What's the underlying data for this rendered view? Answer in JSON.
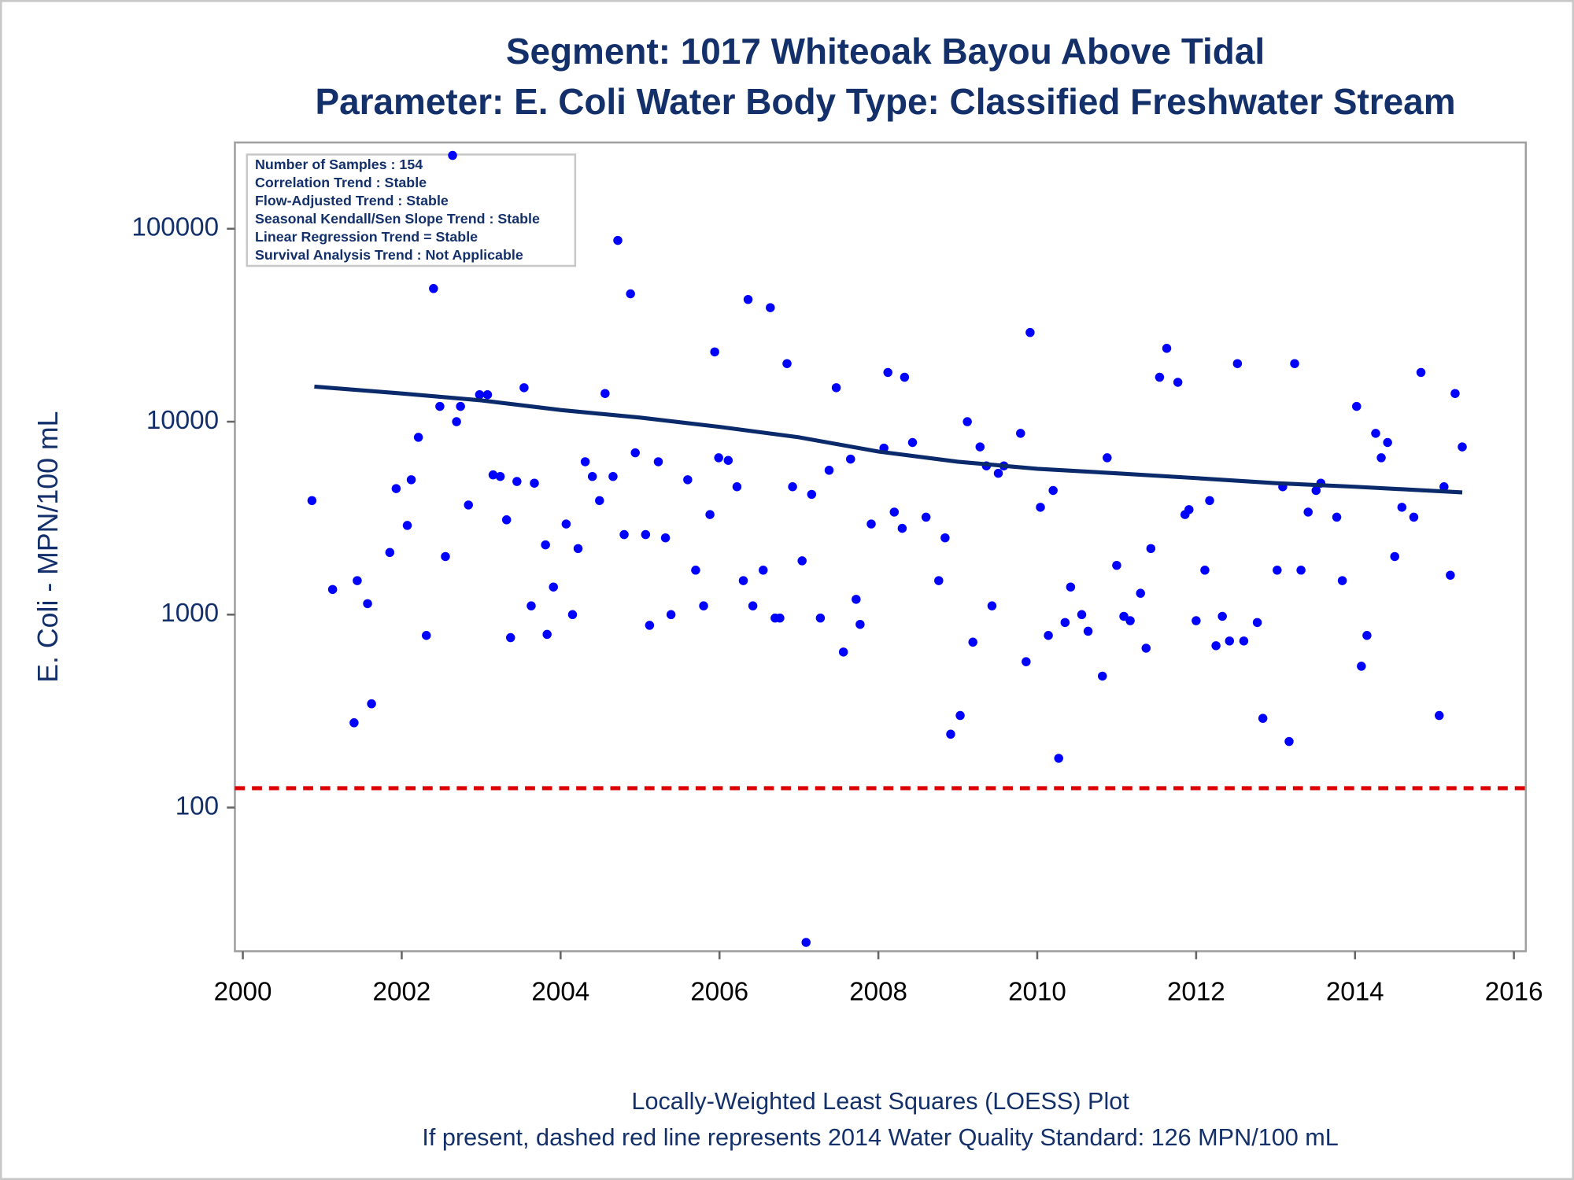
{
  "chart_data": {
    "type": "scatter",
    "title": "Segment: 1017  Whiteoak Bayou Above Tidal",
    "subtitle": "Parameter: E. Coli   Water Body Type: Classified Freshwater Stream",
    "y_label": "E. Coli - MPN/100 mL",
    "footnotes": [
      "Locally-Weighted Least Squares (LOESS) Plot",
      "If present, dashed red line represents 2014 Water Quality Standard: 126 MPN/100 mL"
    ],
    "stats_box": [
      "Number of Samples : 154",
      "Correlation Trend : Stable",
      "Flow-Adjusted Trend : Stable",
      "Seasonal Kendall/Sen Slope Trend : Stable",
      "Linear Regression Trend = Stable",
      "Survival Analysis Trend : Not Applicable"
    ],
    "y_scale": "log",
    "xlim": [
      1999.9,
      2016.15
    ],
    "xticks": [
      2000,
      2002,
      2004,
      2006,
      2008,
      2010,
      2012,
      2014,
      2016
    ],
    "ylim": [
      18,
      280000
    ],
    "yticks": [
      100,
      1000,
      10000,
      100000
    ],
    "points": {
      "color": "#0000ff",
      "x": [
        2000.87,
        2001.13,
        2001.4,
        2001.44,
        2001.57,
        2001.62,
        2001.85,
        2001.93,
        2002.07,
        2002.12,
        2002.21,
        2002.31,
        2002.4,
        2002.48,
        2002.55,
        2002.64,
        2002.69,
        2002.74,
        2002.84,
        2002.98,
        2003.08,
        2003.15,
        2003.24,
        2003.32,
        2003.37,
        2003.45,
        2003.54,
        2003.63,
        2003.67,
        2003.81,
        2003.83,
        2003.91,
        2004.07,
        2004.15,
        2004.22,
        2004.31,
        2004.4,
        2004.49,
        2004.56,
        2004.66,
        2004.72,
        2004.8,
        2004.88,
        2004.94,
        2005.07,
        2005.12,
        2005.23,
        2005.32,
        2005.39,
        2005.6,
        2005.7,
        2005.8,
        2005.88,
        2005.94,
        2005.99,
        2006.11,
        2006.22,
        2006.3,
        2006.36,
        2006.42,
        2006.55,
        2006.64,
        2006.7,
        2006.76,
        2006.85,
        2006.92,
        2007.04,
        2007.09,
        2007.16,
        2007.27,
        2007.38,
        2007.47,
        2007.56,
        2007.65,
        2007.72,
        2007.77,
        2007.91,
        2008.07,
        2008.12,
        2008.2,
        2008.3,
        2008.33,
        2008.43,
        2008.6,
        2008.76,
        2008.84,
        2008.91,
        2009.03,
        2009.12,
        2009.19,
        2009.28,
        2009.36,
        2009.43,
        2009.51,
        2009.58,
        2009.79,
        2009.86,
        2009.91,
        2010.04,
        2010.14,
        2010.2,
        2010.27,
        2010.35,
        2010.42,
        2010.56,
        2010.64,
        2010.82,
        2010.88,
        2011.0,
        2011.09,
        2011.17,
        2011.3,
        2011.37,
        2011.43,
        2011.54,
        2011.63,
        2011.77,
        2011.86,
        2011.91,
        2012.0,
        2012.11,
        2012.17,
        2012.25,
        2012.33,
        2012.42,
        2012.52,
        2012.6,
        2012.77,
        2012.84,
        2013.02,
        2013.09,
        2013.17,
        2013.24,
        2013.32,
        2013.41,
        2013.51,
        2013.57,
        2013.77,
        2013.84,
        2014.02,
        2014.08,
        2014.15,
        2014.26,
        2014.33,
        2014.41,
        2014.5,
        2014.59,
        2014.74,
        2014.83,
        2015.06,
        2015.12,
        2015.2,
        2015.26,
        2015.35
      ],
      "values": [
        3900,
        1350,
        275,
        1500,
        1140,
        345,
        2100,
        4500,
        2900,
        5000,
        8300,
        780,
        49000,
        12000,
        2000,
        240000,
        10000,
        12000,
        3700,
        13800,
        13800,
        5300,
        5200,
        3100,
        760,
        4900,
        15000,
        1110,
        4800,
        2300,
        790,
        1390,
        2950,
        1000,
        2200,
        6200,
        5200,
        3900,
        14000,
        5200,
        87000,
        2600,
        46000,
        6900,
        2600,
        880,
        6200,
        2500,
        1000,
        5000,
        1700,
        1110,
        3300,
        23000,
        6500,
        6300,
        4600,
        1500,
        43000,
        1110,
        1700,
        39000,
        960,
        960,
        20000,
        4600,
        1900,
        20,
        4200,
        960,
        5600,
        15000,
        640,
        6400,
        1200,
        890,
        2950,
        7300,
        18000,
        3400,
        2800,
        17000,
        7800,
        3200,
        1500,
        2500,
        240,
        300,
        10000,
        720,
        7400,
        5900,
        1110,
        5400,
        5900,
        8700,
        570,
        29000,
        3600,
        780,
        4400,
        180,
        910,
        1390,
        1000,
        820,
        480,
        6500,
        1800,
        980,
        930,
        1290,
        670,
        2200,
        17000,
        24000,
        16000,
        3300,
        3500,
        930,
        1700,
        3900,
        690,
        980,
        730,
        20000,
        730,
        910,
        290,
        1700,
        4600,
        220,
        20000,
        1700,
        3400,
        4400,
        4800,
        3200,
        1500,
        12000,
        540,
        780,
        8700,
        6500,
        7800,
        2000,
        3600,
        3200,
        18000,
        300,
        4600,
        1600,
        14000,
        7400
      ]
    },
    "loess": {
      "color": "#0a2a6b",
      "x": [
        2000.9,
        2002,
        2003,
        2004,
        2005,
        2006,
        2007,
        2008,
        2009,
        2010,
        2011,
        2012,
        2013,
        2014,
        2015.35
      ],
      "values": [
        15200,
        14000,
        12900,
        11500,
        10500,
        9400,
        8300,
        7000,
        6200,
        5700,
        5400,
        5100,
        4800,
        4600,
        4300
      ]
    },
    "standard": {
      "value": 126,
      "color": "#dd0000"
    }
  }
}
